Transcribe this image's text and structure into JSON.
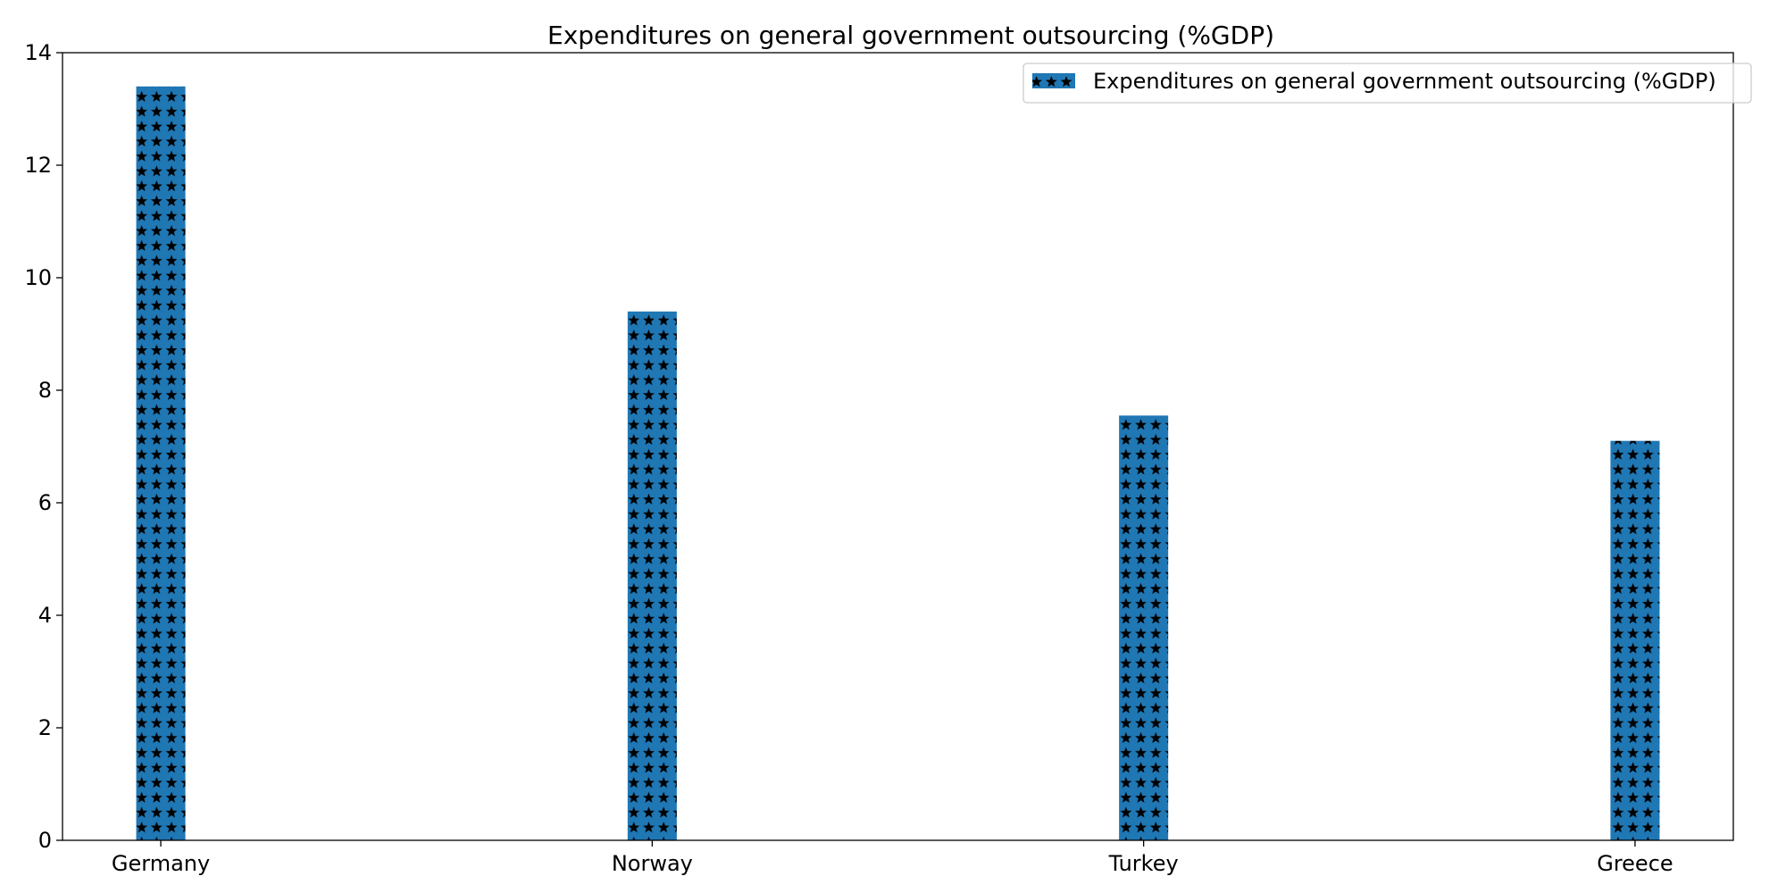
{
  "chart_data": {
    "type": "bar",
    "title": "Expenditures on general government outsourcing (%GDP)",
    "xlabel": "",
    "ylabel": "",
    "categories": [
      "Germany",
      "Norway",
      "Turkey",
      "Greece"
    ],
    "series": [
      {
        "name": "Expenditures on general government outsourcing (%GDP)",
        "values": [
          13.4,
          9.4,
          7.55,
          7.1
        ]
      }
    ],
    "ylim": [
      0,
      14
    ],
    "yticks": [
      0,
      2,
      4,
      6,
      8,
      10,
      12,
      14
    ],
    "ytick_labels": [
      "0",
      "2",
      "4",
      "6",
      "8",
      "10",
      "12",
      "14"
    ],
    "grid": false,
    "legend_position": "top-right",
    "bar_color": "#1f77b4",
    "hatch": "stars",
    "hatch_color": "#000000"
  }
}
